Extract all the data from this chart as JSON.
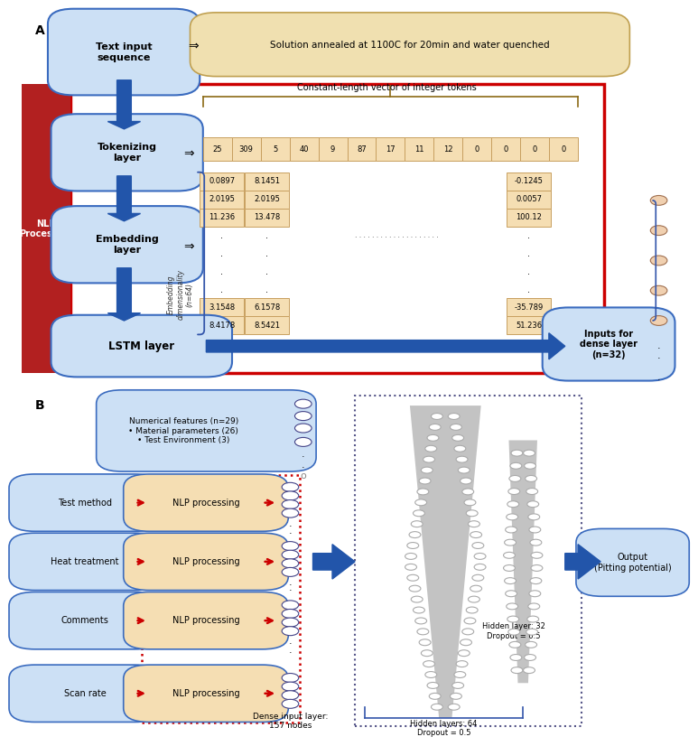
{
  "panel_a_label": "A",
  "panel_b_label": "B",
  "text_input_box": "Text input\nsequence",
  "solution_annealed_box": "Solution annealed at 1100C for 20min and water quenched",
  "nlp_processing_label": "NLP\nProcessing",
  "tokenizing_layer": "Tokenizing\nlayer",
  "embedding_layer": "Embedding\nlayer",
  "lstm_layer": "LSTM layer",
  "token_values": [
    "25",
    "309",
    "5",
    "40",
    "9",
    "87",
    "17",
    "11",
    "12",
    "0",
    "0",
    "0",
    "0"
  ],
  "constant_length_label": "Constant-length vector of integer tokens",
  "embedding_dim_label": "Embedding\ndimensionality\n(n=64)",
  "col1_values": [
    "0.0897",
    "2.0195",
    "11.236",
    ".",
    ".",
    ".",
    ".",
    "3.1548",
    "8.4178"
  ],
  "col2_values": [
    "8.1451",
    "2.0195",
    "13.478",
    ".",
    ".",
    ".",
    ".",
    "6.1578",
    "8.5421"
  ],
  "col_last_values": [
    "-0.1245",
    "0.0057",
    "100.12",
    ".",
    ".",
    ".",
    ".",
    "-35.789",
    "51.236"
  ],
  "inputs_dense_label": "Inputs for\ndense layer\n(n=32)",
  "num_features_label": "Numerical features (n=29)\n• Material parameters (26)\n• Test Environment (3)",
  "test_method_label": "Test method",
  "heat_treatment_label": "Heat treatment",
  "comments_label": "Comments",
  "scan_rate_label": "Scan rate",
  "nlp_processing_box": "NLP processing",
  "dense_input_label": "Dense input layer:\n157 nodes",
  "hidden_layers_64_label": "Hidden layers: 64\nDropout = 0.5",
  "hidden_layer_32_label": "Hidden layer: 32\nDropout = 0.5",
  "output_label": "Output\n(Pitting potential)",
  "light_blue": "#cce0f5",
  "tan": "#f5deb3",
  "blue_edge": "#3a6bbf",
  "red_bg": "#b22020",
  "red_border": "#cc0000",
  "blue_arrow": "#2255aa",
  "red_arrow": "#cc0000",
  "white": "#ffffff",
  "tan_edge": "#c8a060"
}
